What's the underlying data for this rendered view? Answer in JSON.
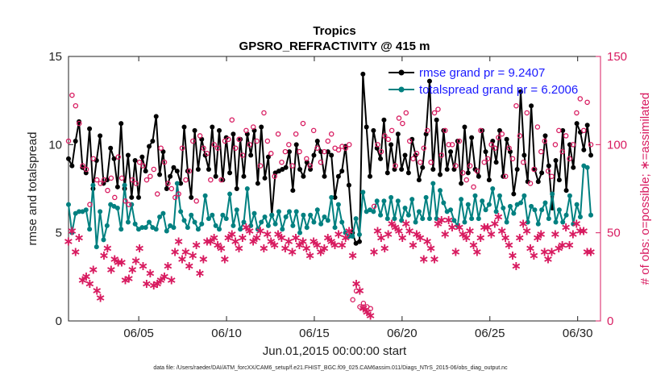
{
  "chart_data": {
    "type": "line",
    "title": "Tropics",
    "subtitle": "GPSRO_REFRACTIVITY @ 415 m",
    "xlabel": "Jun.01,2015 00:00:00 start",
    "ylabel": "rmse and totalspread",
    "y2label": "# of obs: o=possible; ∗=assimilated",
    "xlim": [
      1,
      31.3
    ],
    "ylim": [
      0,
      15
    ],
    "y2lim": [
      0,
      150
    ],
    "x_ticks": [
      5,
      10,
      15,
      20,
      25,
      30
    ],
    "x_tick_labels": [
      "06/05",
      "06/10",
      "06/15",
      "06/20",
      "06/25",
      "06/30"
    ],
    "y_ticks": [
      "0",
      "5",
      "10",
      "15"
    ],
    "y2_ticks": [
      "0",
      "50",
      "100",
      "150"
    ],
    "legend_position": "top-right",
    "footnote": "data file: /Users/raeder/DAI/ATM_forcXX/CAM6_setup/f.e21.FHIST_BGC.f09_025.CAM6assim.011/Diags_NTrS_2015-06/obs_diag_output.nc",
    "series": [
      {
        "name": "rmse grand pr = 9.2407",
        "color": "#000000",
        "marker": "filled-circle",
        "axis": "left",
        "values": [
          9.2,
          8.8,
          10.2,
          11.3,
          8.7,
          8.4,
          10.9,
          7.5,
          9.1,
          10.5,
          7.8,
          8.0,
          9.8,
          9.2,
          7.6,
          11.2,
          7.5,
          9.4,
          7.0,
          9.1,
          7.0,
          9.3,
          8.5,
          9.9,
          10.2,
          11.6,
          8.3,
          9.6,
          7.5,
          8.2,
          8.7,
          8.5,
          7.8,
          11.0,
          8.5,
          7.0,
          10.8,
          8.6,
          10.3,
          9.4,
          8.6,
          11.0,
          8.2,
          10.8,
          8.0,
          10.4,
          8.4,
          10.6,
          7.5,
          10.3,
          8.2,
          10.6,
          9.4,
          10.8,
          7.8,
          11.0,
          8.1,
          9.3,
          6.0,
          8.4,
          8.5,
          8.6,
          8.7,
          9.6,
          7.4,
          10.0,
          8.6,
          8.2,
          9.0,
          8.6,
          9.4,
          10.2,
          9.6,
          8.2,
          9.6,
          9.4,
          7.0,
          8.2,
          8.5,
          9.9,
          7.7,
          5.0,
          4.4,
          4.5,
          14.0,
          11.0,
          8.2,
          10.8,
          9.8,
          9.2,
          11.4,
          8.4,
          10.0,
          8.6,
          10.6,
          8.6,
          9.4,
          8.4,
          10.3,
          9.4,
          8.0,
          8.7,
          10.6,
          13.6,
          8.6,
          11.4,
          8.3,
          10.8,
          8.6,
          9.6,
          8.6,
          10.2,
          7.8,
          11.0,
          8.4,
          10.4,
          8.6,
          8.2,
          10.8,
          9.6,
          8.0,
          10.2,
          9.0,
          10.8,
          8.2,
          10.3,
          9.6,
          7.2,
          8.6,
          13.0,
          9.4,
          7.9,
          12.2,
          8.6,
          7.9,
          8.4,
          10.5,
          8.8,
          6.4,
          9.1,
          8.0,
          10.8,
          7.4,
          10.0,
          8.7,
          11.2,
          10.7,
          9.7,
          11.1,
          9.4
        ]
      },
      {
        "name": "totalspread grand pr = 6.2006",
        "color": "#008080",
        "marker": "filled-circle",
        "axis": "left",
        "values": [
          6.6,
          5.0,
          6.1,
          6.2,
          6.2,
          6.3,
          5.2,
          7.7,
          4.2,
          6.2,
          4.6,
          5.4,
          6.6,
          6.5,
          6.4,
          5.2,
          7.7,
          5.6,
          6.6,
          5.5,
          5.2,
          5.3,
          5.3,
          5.6,
          5.3,
          5.2,
          5.9,
          6.1,
          5.1,
          5.4,
          5.3,
          7.8,
          6.2,
          5.7,
          5.3,
          6.0,
          5.6,
          5.2,
          5.5,
          7.1,
          5.8,
          6.0,
          5.4,
          5.2,
          6.0,
          5.8,
          7.2,
          5.4,
          6.3,
          5.2,
          5.6,
          7.5,
          5.4,
          6.1,
          5.2,
          5.6,
          5.9,
          5.4,
          6.0,
          5.5,
          6.2,
          5.2,
          5.9,
          6.2,
          5.4,
          6.2,
          5.0,
          6.0,
          5.3,
          6.0,
          5.6,
          6.3,
          5.5,
          5.9,
          5.7,
          7.0,
          5.3,
          6.6,
          5.6,
          5.0,
          4.8,
          4.8,
          5.8,
          4.9,
          7.3,
          6.2,
          6.3,
          6.2,
          6.8,
          6.0,
          6.8,
          5.8,
          7.0,
          5.8,
          6.8,
          5.7,
          6.4,
          6.0,
          6.9,
          5.6,
          6.2,
          5.8,
          7.0,
          5.8,
          7.8,
          5.8,
          7.4,
          6.7,
          6.2,
          6.3,
          5.7,
          5.4,
          6.9,
          5.6,
          6.6,
          5.8,
          7.1,
          5.8,
          6.8,
          6.3,
          6.6,
          7.5,
          6.2,
          7.1,
          6.4,
          5.6,
          6.5,
          6.1,
          6.6,
          6.7,
          7.1,
          5.6,
          6.5,
          6.3,
          5.5,
          6.3,
          6.7,
          5.8,
          7.2,
          5.6,
          6.3,
          5.6,
          6.0,
          7.1,
          5.5,
          6.6,
          5.9,
          8.8,
          8.7,
          6.0
        ]
      },
      {
        "name": "possible obs",
        "color": "#d81b60",
        "marker": "open-circle",
        "axis": "right",
        "values": [
          102,
          128,
          122,
          112,
          88,
          86,
          66,
          92,
          80,
          78,
          80,
          74,
          81,
          70,
          93,
          81,
          68,
          66,
          80,
          78,
          90,
          88,
          80,
          82,
          86,
          72,
          98,
          90,
          78,
          75,
          70,
          72,
          98,
          80,
          85,
          102,
          68,
          105,
          98,
          95,
          80,
          100,
          98,
          80,
          102,
          103,
          114,
          98,
          103,
          94,
          108,
          100,
          110,
          102,
          88,
          118,
          102,
          95,
          82,
          106,
          90,
          96,
          100,
          88,
          106,
          96,
          112,
          92,
          88,
          108,
          98,
          90,
          96,
          102,
          106,
          98,
          97,
          99,
          98,
          100,
          12,
          17,
          8,
          10,
          8,
          7,
          65,
          100,
          96,
          105,
          103,
          108,
          88,
          115,
          112,
          118,
          102,
          92,
          95,
          90,
          98,
          108,
          90,
          118,
          120,
          94,
          108,
          100,
          100,
          88,
          102,
          84,
          80,
          88,
          76,
          85,
          108,
          90,
          92,
          100,
          98,
          104,
          106,
          82,
          98,
          92,
          122,
          105,
          90,
          118,
          78,
          86,
          110,
          96,
          102,
          85,
          82,
          100,
          108,
          96,
          105,
          92,
          100,
          118,
          126,
          108,
          124,
          100
        ]
      },
      {
        "name": "assimilated obs",
        "color": "#d81b60",
        "marker": "asterisk",
        "axis": "right",
        "values": [
          46,
          52,
          40,
          48,
          24,
          26,
          22,
          30,
          18,
          14,
          38,
          42,
          30,
          36,
          34,
          34,
          24,
          25,
          30,
          35,
          42,
          32,
          22,
          28,
          21,
          22,
          24,
          26,
          32,
          24,
          40,
          46,
          36,
          40,
          32,
          38,
          44,
          28,
          36,
          46,
          46,
          48,
          44,
          42,
          36,
          48,
          50,
          46,
          42,
          48,
          54,
          52,
          46,
          48,
          52,
          42,
          50,
          46,
          44,
          50,
          48,
          42,
          46,
          40,
          48,
          44,
          46,
          42,
          38,
          46,
          44,
          40,
          42,
          48,
          46,
          44,
          50,
          44,
          48,
          52,
          38,
          22,
          18,
          8,
          6,
          4,
          40,
          52,
          48,
          42,
          50,
          56,
          54,
          52,
          48,
          56,
          52,
          44,
          50,
          48,
          36,
          46,
          42,
          36,
          56,
          58,
          50,
          58,
          54,
          40,
          54,
          50,
          48,
          52,
          44,
          40,
          48,
          54,
          54,
          50,
          56,
          60,
          52,
          48,
          44,
          38,
          32,
          48,
          56,
          52,
          42,
          38,
          48,
          50,
          40,
          36,
          40,
          50,
          42,
          44,
          54,
          44,
          50,
          56,
          52,
          52,
          40,
          40
        ]
      }
    ]
  }
}
